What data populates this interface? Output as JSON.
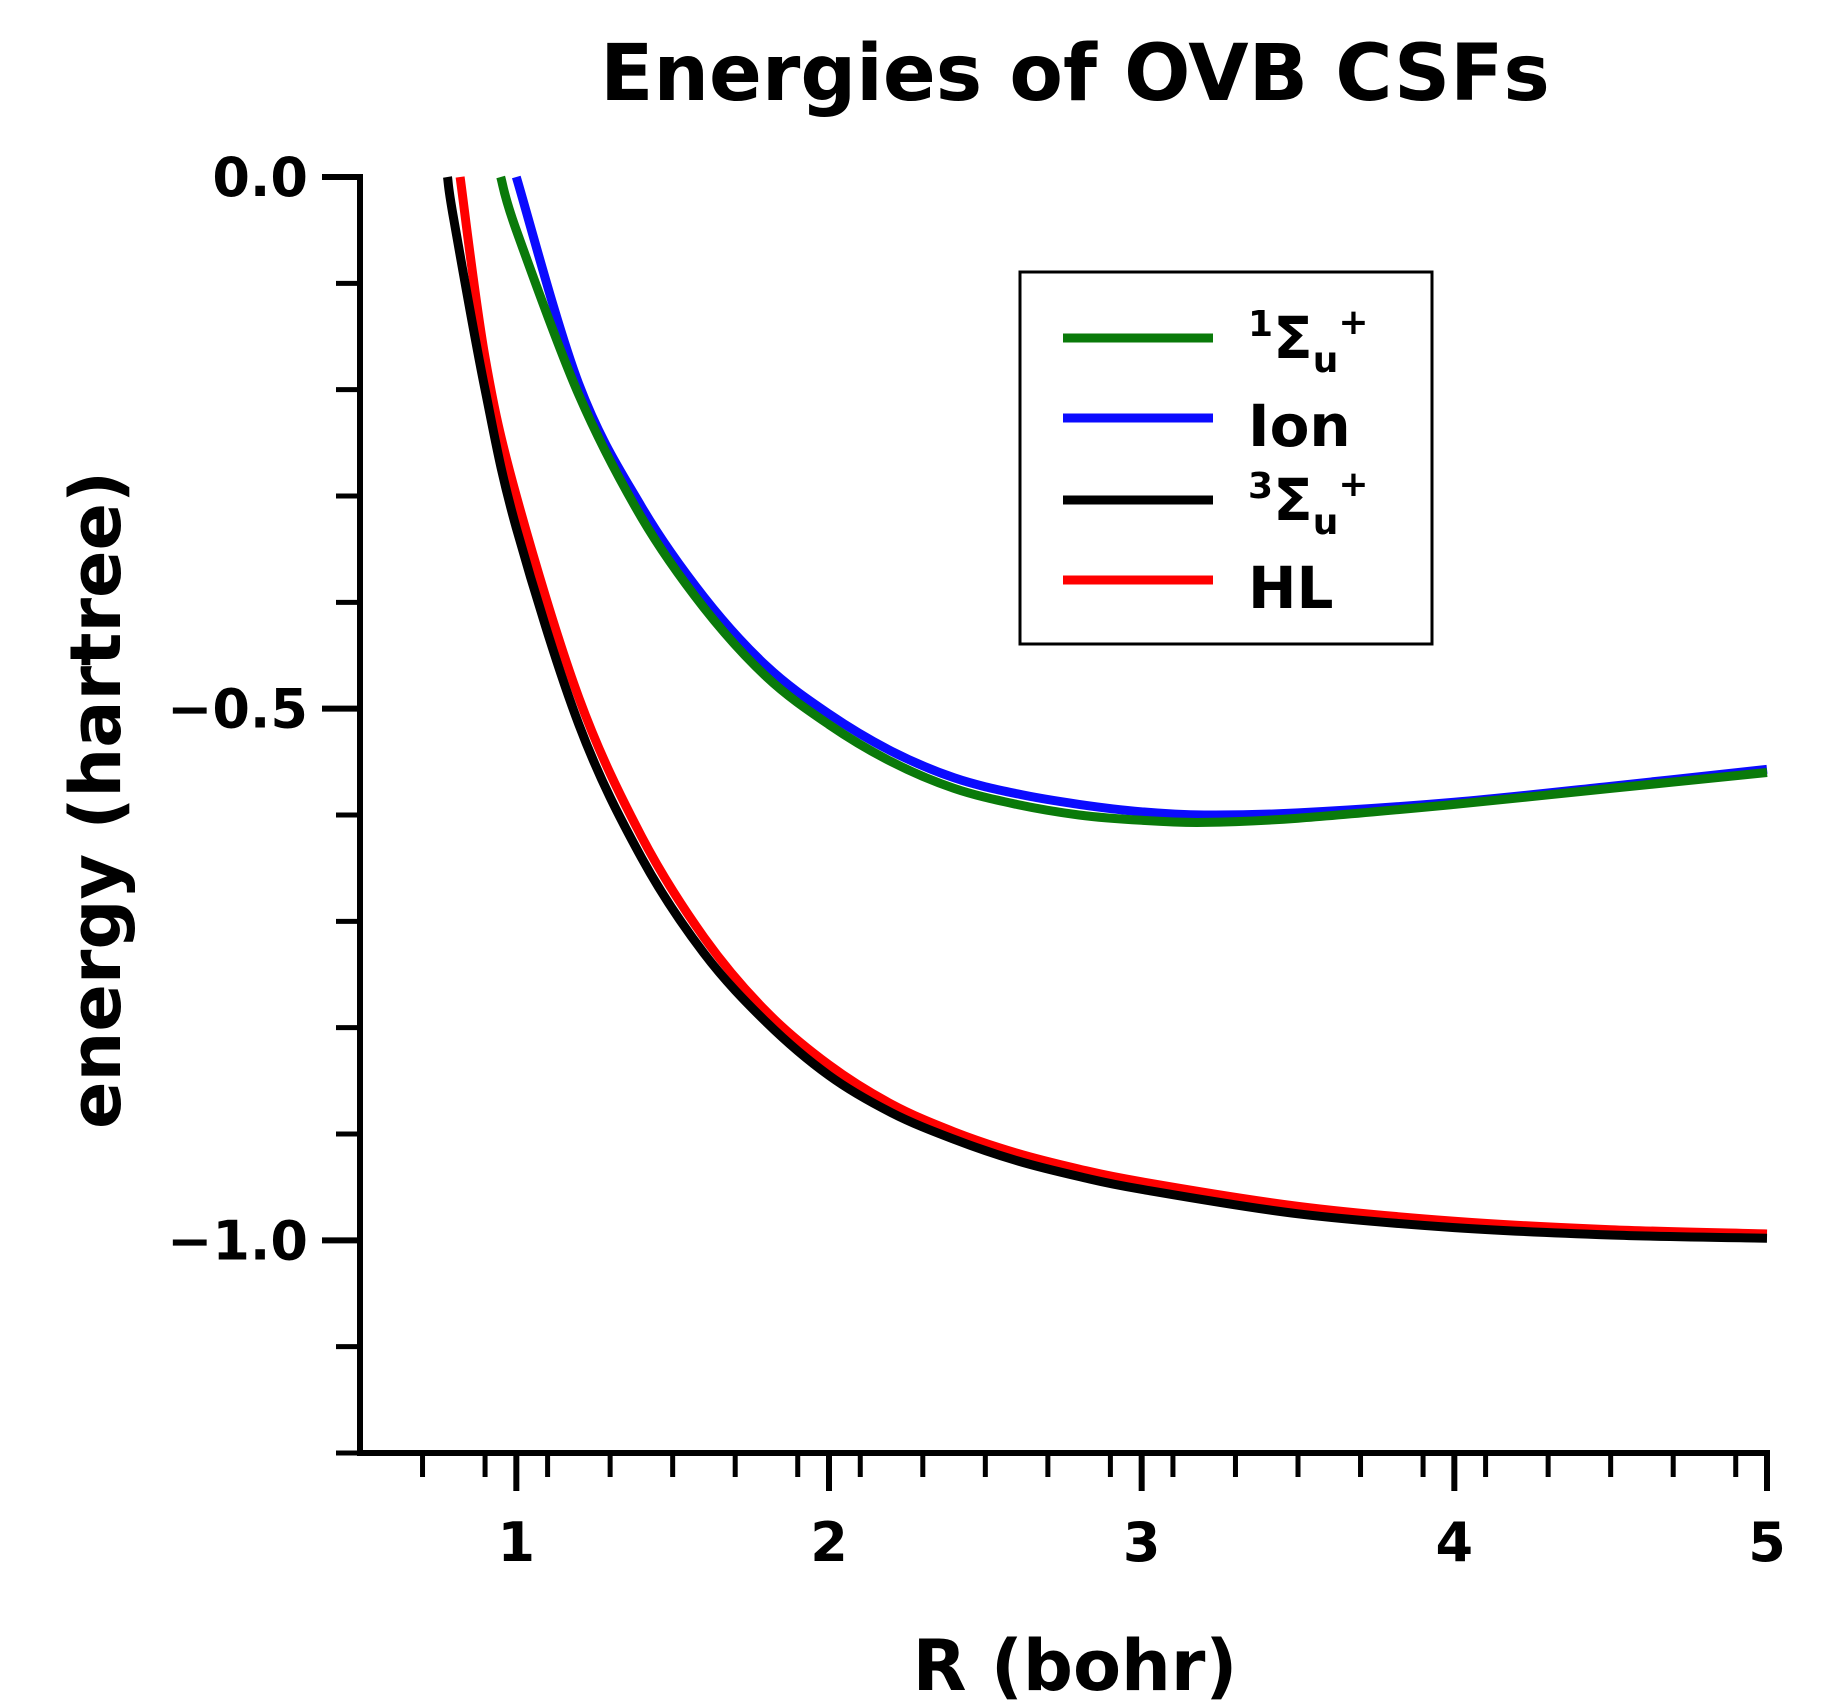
{
  "chart_data": {
    "type": "line",
    "title": "Energies of OVB CSFs",
    "xlabel": "R (bohr)",
    "ylabel": "energy (hartree)",
    "xlim": [
      0.5,
      5.0
    ],
    "ylim": [
      -1.2,
      0.0
    ],
    "x_major_ticks": [
      1,
      2,
      3,
      4,
      5
    ],
    "x_tick_labels": [
      "1",
      "2",
      "3",
      "4",
      "5"
    ],
    "x_minor_step": 0.2,
    "y_major_ticks": [
      0.0,
      -0.5,
      -1.0
    ],
    "y_tick_labels": [
      "0.0",
      "−0.5",
      "−1.0"
    ],
    "y_minor_step": 0.1,
    "grid": false,
    "legend_position": "top-right",
    "series": [
      {
        "key": "sigma1",
        "legend_main": "Σ",
        "legend_pre_sup": "1",
        "legend_sub": "u",
        "legend_post_sup": "+",
        "color": "#0a7a0a",
        "x": [
          0.95,
          1.0,
          1.2,
          1.4,
          1.6,
          1.8,
          2.0,
          2.2,
          2.4,
          2.6,
          2.8,
          3.0,
          3.2,
          3.5,
          4.0,
          4.5,
          5.0
        ],
        "y": [
          0.0,
          -0.05,
          -0.205,
          -0.32,
          -0.405,
          -0.47,
          -0.515,
          -0.55,
          -0.575,
          -0.59,
          -0.6,
          -0.605,
          -0.607,
          -0.603,
          -0.59,
          -0.575,
          -0.56
        ]
      },
      {
        "key": "ion",
        "legend_main": "Ion",
        "color": "#0b0bff",
        "x": [
          1.0,
          1.2,
          1.4,
          1.6,
          1.8,
          2.0,
          2.2,
          2.4,
          2.6,
          2.8,
          3.0,
          3.2,
          3.5,
          4.0,
          4.5,
          5.0
        ],
        "y": [
          0.0,
          -0.195,
          -0.31,
          -0.395,
          -0.46,
          -0.505,
          -0.54,
          -0.565,
          -0.58,
          -0.59,
          -0.597,
          -0.6,
          -0.598,
          -0.588,
          -0.573,
          -0.557
        ]
      },
      {
        "key": "sigma3",
        "legend_main": "Σ",
        "legend_pre_sup": "3",
        "legend_sub": "u",
        "legend_post_sup": "+",
        "color": "#000000",
        "x": [
          0.78,
          0.8,
          0.9,
          1.0,
          1.2,
          1.4,
          1.6,
          1.8,
          2.0,
          2.2,
          2.4,
          2.6,
          2.8,
          3.0,
          3.5,
          4.0,
          4.5,
          5.0
        ],
        "y": [
          0.0,
          -0.04,
          -0.2,
          -0.33,
          -0.515,
          -0.64,
          -0.73,
          -0.795,
          -0.845,
          -0.88,
          -0.905,
          -0.925,
          -0.94,
          -0.952,
          -0.975,
          -0.988,
          -0.995,
          -0.998
        ]
      },
      {
        "key": "hl",
        "legend_main": "HL",
        "color": "#ff0000",
        "x": [
          0.82,
          0.9,
          1.0,
          1.2,
          1.4,
          1.6,
          1.8,
          2.0,
          2.2,
          2.4,
          2.6,
          2.8,
          3.0,
          3.5,
          4.0,
          4.5,
          5.0
        ],
        "y": [
          0.0,
          -0.17,
          -0.3,
          -0.49,
          -0.62,
          -0.715,
          -0.785,
          -0.835,
          -0.872,
          -0.898,
          -0.918,
          -0.933,
          -0.945,
          -0.968,
          -0.982,
          -0.99,
          -0.994
        ]
      }
    ]
  }
}
